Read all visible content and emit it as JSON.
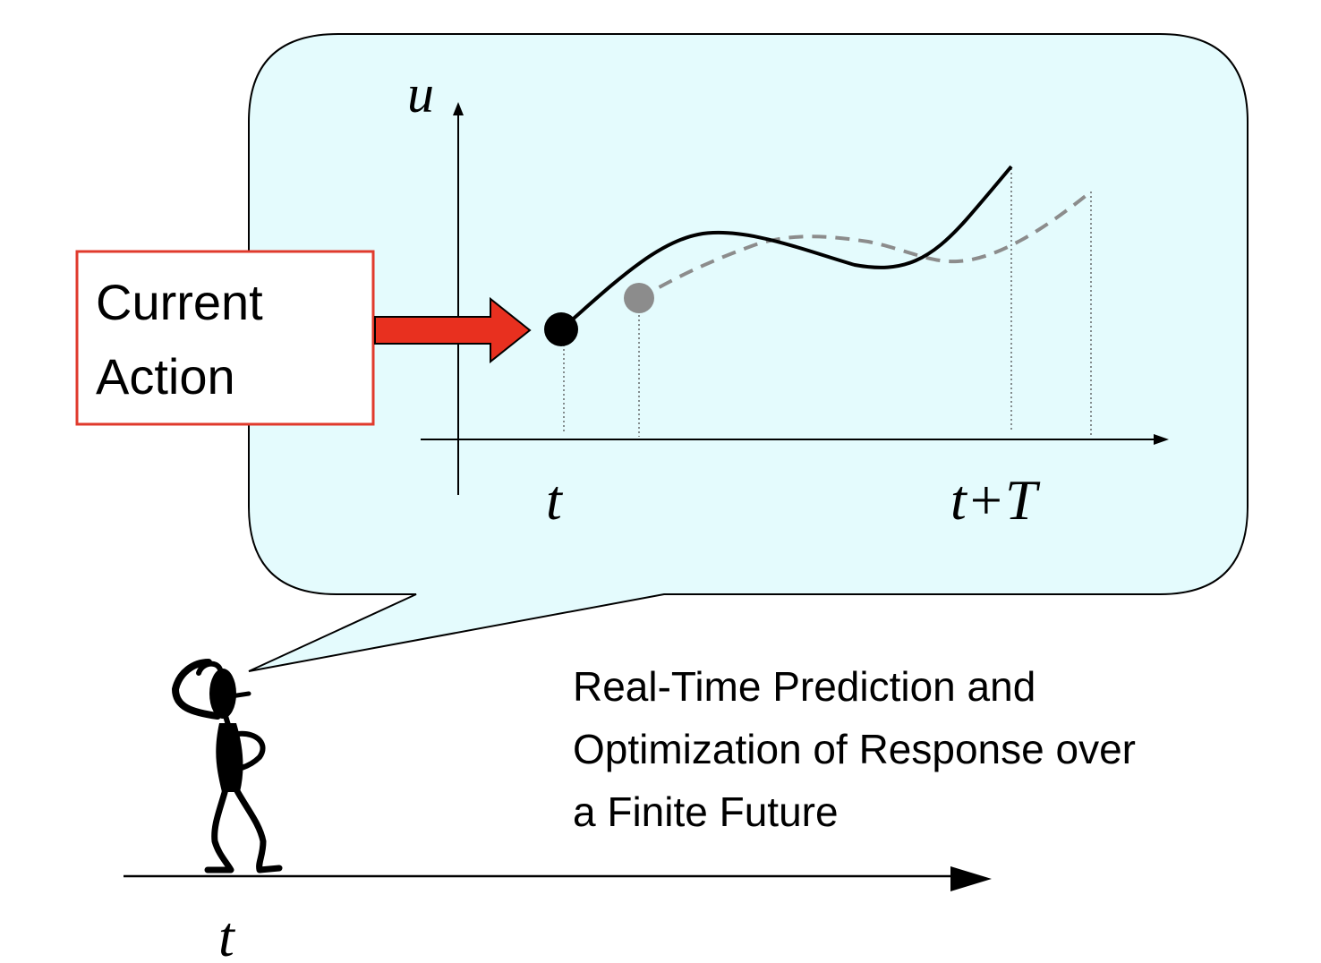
{
  "plot": {
    "y_axis_label": "u",
    "x_tick_start": "t",
    "x_tick_end": "t+T"
  },
  "callout": {
    "line1": "Current",
    "line2": "Action",
    "border_color": "#e03a2c",
    "arrow_color": "#e8301f"
  },
  "caption": {
    "line1": "Real-Time Prediction and",
    "line2": "Optimization of Response over",
    "line3": "a Finite Future"
  },
  "timeline": {
    "label": "t"
  },
  "colors": {
    "bubble_fill": "#e4fbfd",
    "current_plan": "#000000",
    "next_plan": "#8c8c8c"
  }
}
